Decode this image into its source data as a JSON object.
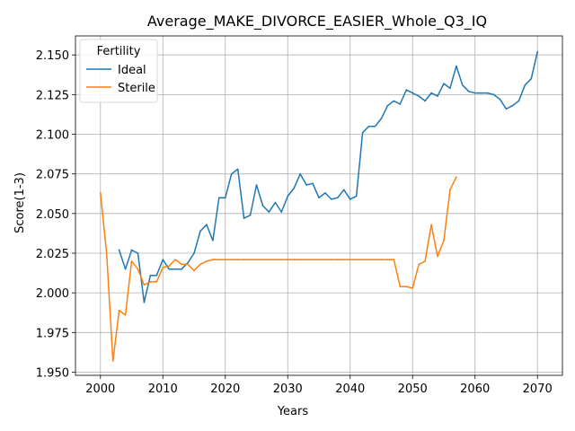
{
  "chart_data": {
    "type": "line",
    "title": "Average_MAKE_DIVORCE_EASIER_Whole_Q3_IQ",
    "xlabel": "Years",
    "ylabel": "Score(1-3)",
    "xlim": [
      1996,
      2074
    ],
    "ylim": [
      1.948,
      2.162
    ],
    "xticks": [
      2000,
      2010,
      2020,
      2030,
      2040,
      2050,
      2060,
      2070
    ],
    "yticks": [
      1.95,
      1.975,
      2.0,
      2.025,
      2.05,
      2.075,
      2.1,
      2.125,
      2.15
    ],
    "ytick_labels": [
      "1.950",
      "1.975",
      "2.000",
      "2.025",
      "2.050",
      "2.075",
      "2.100",
      "2.125",
      "2.150"
    ],
    "grid": true,
    "legend": {
      "title": "Fertility",
      "placement": "top-left"
    },
    "series": [
      {
        "name": "Ideal",
        "color": "#1f77b4",
        "x": [
          2003,
          2004,
          2005,
          2006,
          2007,
          2008,
          2009,
          2010,
          2011,
          2012,
          2013,
          2014,
          2015,
          2016,
          2017,
          2018,
          2019,
          2020,
          2021,
          2022,
          2023,
          2024,
          2025,
          2026,
          2027,
          2028,
          2029,
          2030,
          2031,
          2032,
          2033,
          2034,
          2035,
          2036,
          2037,
          2038,
          2039,
          2040,
          2041,
          2042,
          2043,
          2044,
          2045,
          2046,
          2047,
          2048,
          2049,
          2050,
          2051,
          2052,
          2053,
          2054,
          2055,
          2056,
          2057,
          2058,
          2059,
          2060,
          2061,
          2062,
          2063,
          2064,
          2065,
          2066,
          2067,
          2068,
          2069,
          2070
        ],
        "y": [
          2.027,
          2.015,
          2.027,
          2.025,
          1.994,
          2.011,
          2.011,
          2.021,
          2.015,
          2.015,
          2.015,
          2.019,
          2.025,
          2.039,
          2.043,
          2.033,
          2.06,
          2.06,
          2.075,
          2.078,
          2.047,
          2.049,
          2.068,
          2.055,
          2.051,
          2.057,
          2.051,
          2.061,
          2.066,
          2.075,
          2.068,
          2.069,
          2.06,
          2.063,
          2.059,
          2.06,
          2.065,
          2.059,
          2.061,
          2.101,
          2.105,
          2.105,
          2.11,
          2.118,
          2.121,
          2.119,
          2.128,
          2.126,
          2.124,
          2.121,
          2.126,
          2.124,
          2.132,
          2.129,
          2.143,
          2.131,
          2.127,
          2.126,
          2.126,
          2.126,
          2.125,
          2.122,
          2.116,
          2.118,
          2.121,
          2.131,
          2.135,
          2.152
        ]
      },
      {
        "name": "Sterile",
        "color": "#ff7f0e",
        "x": [
          2000,
          2001,
          2002,
          2003,
          2004,
          2005,
          2006,
          2007,
          2008,
          2009,
          2010,
          2011,
          2012,
          2013,
          2014,
          2015,
          2016,
          2017,
          2018,
          2019,
          2020,
          2021,
          2022,
          2023,
          2024,
          2025,
          2026,
          2027,
          2028,
          2029,
          2030,
          2031,
          2032,
          2033,
          2034,
          2035,
          2036,
          2037,
          2038,
          2039,
          2040,
          2041,
          2042,
          2043,
          2044,
          2045,
          2046,
          2047,
          2048,
          2049,
          2050,
          2051,
          2052,
          2053,
          2054,
          2055,
          2056,
          2057
        ],
        "y": [
          2.063,
          2.025,
          1.957,
          1.989,
          1.986,
          2.02,
          2.015,
          2.005,
          2.007,
          2.007,
          2.016,
          2.017,
          2.021,
          2.018,
          2.018,
          2.014,
          2.018,
          2.02,
          2.021,
          2.021,
          2.021,
          2.021,
          2.021,
          2.021,
          2.021,
          2.021,
          2.021,
          2.021,
          2.021,
          2.021,
          2.021,
          2.021,
          2.021,
          2.021,
          2.021,
          2.021,
          2.021,
          2.021,
          2.021,
          2.021,
          2.021,
          2.021,
          2.021,
          2.021,
          2.021,
          2.021,
          2.021,
          2.021,
          2.004,
          2.004,
          2.003,
          2.018,
          2.02,
          2.043,
          2.023,
          2.033,
          2.065,
          2.073
        ]
      }
    ]
  }
}
